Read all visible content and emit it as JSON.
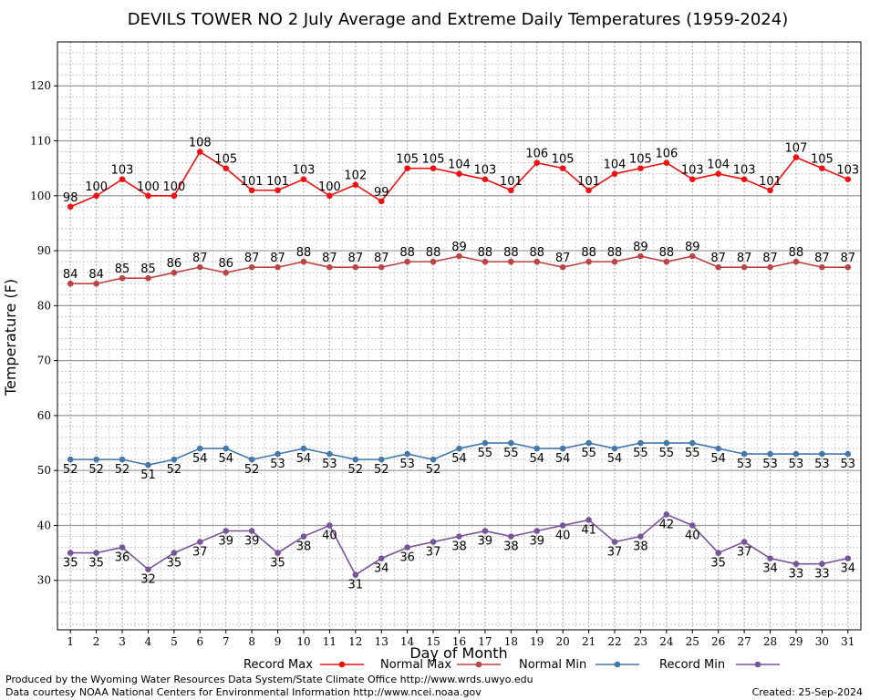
{
  "chart_data": {
    "type": "line",
    "title": "DEVILS TOWER NO 2 July Average and Extreme Daily Temperatures (1959-2024)",
    "xlabel": "Day of Month",
    "ylabel": "Temperature (F)",
    "ylim": [
      21,
      128
    ],
    "xlim": [
      0.5,
      31.5
    ],
    "yticks": [
      30,
      40,
      50,
      60,
      70,
      80,
      90,
      100,
      110,
      120
    ],
    "x": [
      1,
      2,
      3,
      4,
      5,
      6,
      7,
      8,
      9,
      10,
      11,
      12,
      13,
      14,
      15,
      16,
      17,
      18,
      19,
      20,
      21,
      22,
      23,
      24,
      25,
      26,
      27,
      28,
      29,
      30,
      31
    ],
    "grid": true,
    "legend_position": "bottom",
    "series": [
      {
        "name": "Record Max",
        "color": "#ee1111",
        "label_pos": "above",
        "values": [
          98,
          100,
          103,
          100,
          100,
          108,
          105,
          101,
          101,
          103,
          100,
          102,
          99,
          105,
          105,
          104,
          103,
          101,
          106,
          105,
          101,
          104,
          105,
          106,
          103,
          104,
          103,
          101,
          107,
          105,
          103
        ]
      },
      {
        "name": "Normal Max",
        "color": "#bb4444",
        "label_pos": "above",
        "values": [
          84,
          84,
          85,
          85,
          86,
          87,
          86,
          87,
          87,
          88,
          87,
          87,
          87,
          88,
          88,
          89,
          88,
          88,
          88,
          87,
          88,
          88,
          89,
          88,
          89,
          87,
          87,
          87,
          88,
          87,
          87
        ]
      },
      {
        "name": "Normal Min",
        "color": "#4477aa",
        "label_pos": "below",
        "values": [
          52,
          52,
          52,
          51,
          52,
          54,
          54,
          52,
          53,
          54,
          53,
          52,
          52,
          53,
          52,
          54,
          55,
          55,
          54,
          54,
          55,
          54,
          55,
          55,
          55,
          54,
          53,
          53,
          53,
          53,
          53
        ]
      },
      {
        "name": "Record Min",
        "color": "#775599",
        "label_pos": "below",
        "values": [
          35,
          35,
          36,
          32,
          35,
          37,
          39,
          39,
          35,
          38,
          40,
          31,
          34,
          36,
          37,
          38,
          39,
          38,
          39,
          40,
          41,
          37,
          38,
          42,
          40,
          35,
          37,
          34,
          33,
          33,
          34
        ]
      }
    ]
  },
  "footer": {
    "produced_by": "Produced by the Wyoming Water Resources Data System/State Climate Office http://www.wrds.uwyo.edu",
    "courtesy": "Data courtesy NOAA National Centers for Environmental Information http://www.ncei.noaa.gov",
    "created": "Created:  25-Sep-2024"
  }
}
